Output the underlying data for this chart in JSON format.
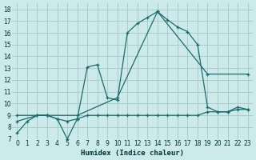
{
  "xlabel": "Humidex (Indice chaleur)",
  "bg_color": "#cceaea",
  "grid_color": "#aacccc",
  "line_color": "#1a6b6b",
  "xlim": [
    -0.5,
    23.5
  ],
  "ylim": [
    7,
    18.5
  ],
  "yticks": [
    7,
    8,
    9,
    10,
    11,
    12,
    13,
    14,
    15,
    16,
    17,
    18
  ],
  "xticks": [
    0,
    1,
    2,
    3,
    4,
    5,
    6,
    7,
    8,
    9,
    10,
    11,
    12,
    13,
    14,
    15,
    16,
    17,
    18,
    19,
    20,
    21,
    22,
    23
  ],
  "curve1_x": [
    0,
    1,
    2,
    3,
    4,
    5,
    6,
    7,
    8,
    9,
    10,
    11,
    12,
    13,
    14,
    15,
    16,
    17,
    18,
    19,
    20,
    21,
    22,
    23
  ],
  "curve1_y": [
    7.5,
    8.5,
    9.0,
    9.0,
    8.7,
    7.0,
    8.7,
    13.1,
    13.3,
    10.5,
    10.3,
    16.0,
    16.8,
    17.3,
    17.8,
    17.1,
    16.5,
    16.1,
    15.0,
    9.7,
    9.3,
    9.3,
    9.7,
    9.5
  ],
  "curve2_x": [
    0,
    3,
    6,
    10,
    14,
    19,
    23
  ],
  "curve2_y": [
    9.0,
    9.0,
    9.0,
    10.5,
    17.8,
    12.5,
    12.5
  ],
  "curve3_x": [
    0,
    2,
    3,
    4,
    5,
    6,
    7,
    8,
    9,
    10,
    11,
    12,
    13,
    14,
    15,
    16,
    17,
    18,
    19,
    20,
    21,
    22,
    23
  ],
  "curve3_y": [
    8.5,
    9.0,
    9.0,
    8.7,
    8.5,
    8.7,
    9.0,
    9.0,
    9.0,
    9.0,
    9.0,
    9.0,
    9.0,
    9.0,
    9.0,
    9.0,
    9.0,
    9.0,
    9.3,
    9.3,
    9.3,
    9.5,
    9.5
  ]
}
